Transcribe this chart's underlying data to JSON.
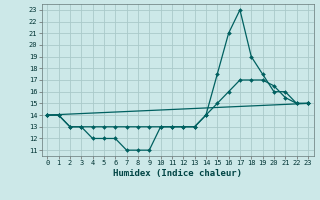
{
  "title": "",
  "xlabel": "Humidex (Indice chaleur)",
  "ylabel": "",
  "bg_color": "#cce8e8",
  "grid_color": "#aacaca",
  "line_color": "#006060",
  "xlim": [
    -0.5,
    23.5
  ],
  "ylim": [
    10.5,
    23.5
  ],
  "yticks": [
    11,
    12,
    13,
    14,
    15,
    16,
    17,
    18,
    19,
    20,
    21,
    22,
    23
  ],
  "xticks": [
    0,
    1,
    2,
    3,
    4,
    5,
    6,
    7,
    8,
    9,
    10,
    11,
    12,
    13,
    14,
    15,
    16,
    17,
    18,
    19,
    20,
    21,
    22,
    23
  ],
  "series": [
    {
      "x": [
        0,
        1,
        2,
        3,
        4,
        5,
        6,
        7,
        8,
        9,
        10,
        11,
        12,
        13,
        14,
        15,
        16,
        17,
        18,
        19,
        20,
        21,
        22,
        23
      ],
      "y": [
        14,
        14,
        13,
        13,
        12,
        12,
        12,
        11,
        11,
        11,
        13,
        13,
        13,
        13,
        14,
        17.5,
        21,
        23,
        19,
        17.5,
        16,
        16,
        15,
        15
      ]
    },
    {
      "x": [
        0,
        1,
        2,
        3,
        4,
        5,
        6,
        7,
        8,
        9,
        10,
        11,
        12,
        13,
        14,
        15,
        16,
        17,
        18,
        19,
        20,
        21,
        22,
        23
      ],
      "y": [
        14,
        14,
        13,
        13,
        13,
        13,
        13,
        13,
        13,
        13,
        13,
        13,
        13,
        13,
        14,
        15,
        16,
        17,
        17,
        17,
        16.5,
        15.5,
        15,
        15
      ]
    },
    {
      "x": [
        0,
        23
      ],
      "y": [
        14,
        15
      ]
    }
  ]
}
